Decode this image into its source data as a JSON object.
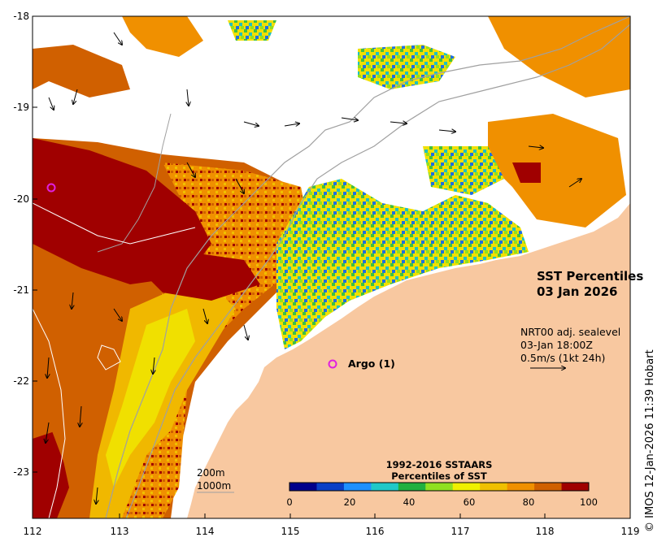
{
  "map": {
    "title_line1": "SST Percentiles",
    "title_line2": "03 Jan 2026",
    "info_line1": "NRT00 adj. sealevel",
    "info_line2": "03-Jan 18:00Z",
    "info_line3": "0.5m/s (1kt 24h)",
    "credit": "© IMOS 12-Jan-2026 11:39 Hobart",
    "argo_label": "Argo (1)",
    "argo_marker": "o",
    "depth_200": "200m",
    "depth_1000": "1000m",
    "lon_ticks": [
      "112",
      "113",
      "114",
      "115",
      "116",
      "117",
      "118",
      "119"
    ],
    "lat_ticks": [
      "-18",
      "-19",
      "-20",
      "-21",
      "-22",
      "-23"
    ],
    "legend_title1": "1992-2016 SSTAARS",
    "legend_title2": "Percentiles of SST",
    "legend_ticks": [
      "0",
      "20",
      "40",
      "60",
      "80",
      "100"
    ],
    "legend_colors": [
      "#00008b",
      "#0a3fc6",
      "#1e90ff",
      "#20c8c8",
      "#20b040",
      "#90e020",
      "#f0f000",
      "#f0c000",
      "#f09000",
      "#d06000",
      "#a00000"
    ],
    "colors": {
      "land": "#f8c8a0",
      "dark_red": "#a00000",
      "orange_dark": "#d06000",
      "orange": "#f09000",
      "yellow_orange": "#f0b800",
      "yellow": "#f0e000",
      "green": "#40c040",
      "cyan": "#20c0c0",
      "blue": "#1e70e0",
      "magenta": "#e020e0"
    }
  }
}
